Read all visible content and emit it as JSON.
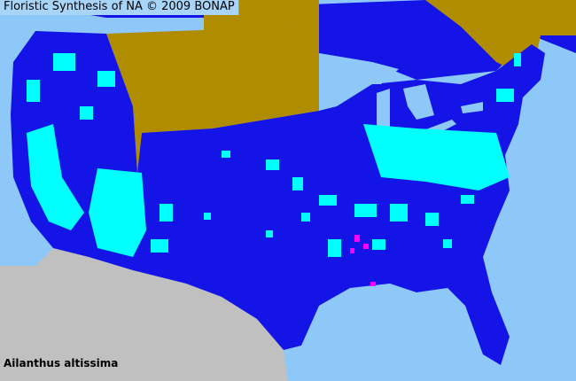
{
  "header": {
    "title": "Floristic Synthesis of NA © 2009 BONAP"
  },
  "map": {
    "species": "Ailanthus altissima",
    "colors": {
      "water": "#8ec8f8",
      "present_native_region": "#1414e6",
      "present_county": "#00ffff",
      "canada_province": "#b08c00",
      "mexico": "#c0c0c0",
      "noxious": "#ff00ff",
      "county_lines": "#7a5a20"
    }
  }
}
